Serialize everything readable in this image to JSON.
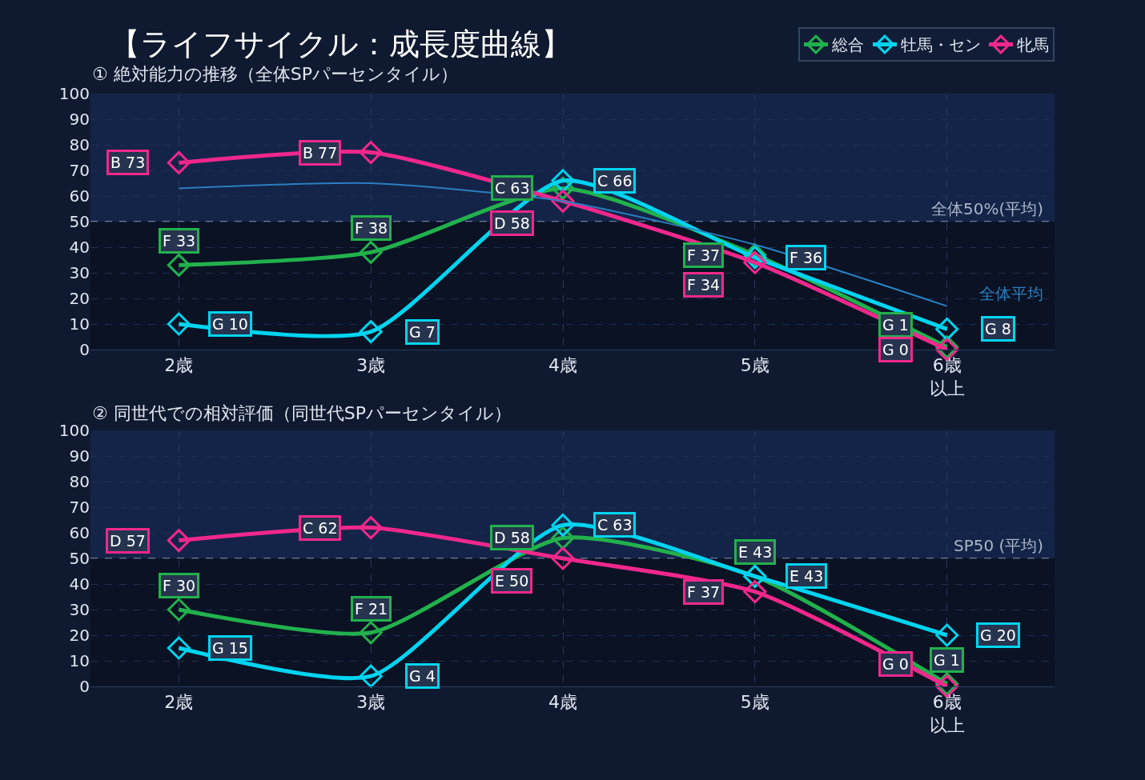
{
  "chart_data": [
    {
      "type": "line",
      "title": "【ライフサイクル：成長度曲線】",
      "subtitle": "① 絶対能力の推移（全体SPパーセンタイル）",
      "categories": [
        "2歳",
        "3歳",
        "4歳",
        "5歳",
        "6歳以上"
      ],
      "series": [
        {
          "name": "総合",
          "color": "#22b14c",
          "values": [
            33,
            38,
            63,
            37,
            1
          ],
          "value_labels": [
            "F 33",
            "F 38",
            "C 63",
            "F 37",
            "G 1"
          ]
        },
        {
          "name": "牡馬・セン",
          "color": "#00d4f0",
          "values": [
            10,
            7,
            66,
            36,
            8
          ],
          "value_labels": [
            "G 10",
            "G 7",
            "C 66",
            "F 36",
            "G 8"
          ]
        },
        {
          "name": "牝馬",
          "color": "#f0288c",
          "values": [
            73,
            77,
            58,
            34,
            0
          ],
          "value_labels": [
            "B 73",
            "B 77",
            "D 58",
            "F 34",
            "G 0"
          ]
        },
        {
          "name": "全体平均",
          "color": "#2a7fc0",
          "values": [
            63,
            65,
            58,
            41,
            17
          ],
          "marker": "none"
        }
      ],
      "ylim": [
        0,
        100
      ],
      "yticks": [
        0,
        10,
        20,
        30,
        40,
        50,
        60,
        70,
        80,
        90,
        100
      ],
      "ref_lines": [
        {
          "axis": "y",
          "value": 50,
          "label": "全体50%(平均)",
          "color": "#6c7a96",
          "line_style": "dashed"
        }
      ],
      "bands": [
        {
          "axis": "y",
          "from": 50,
          "to": 100,
          "color": "#142448"
        }
      ],
      "grid": true,
      "legend": "top right",
      "marker": "diamond"
    },
    {
      "type": "line",
      "title": "② 同世代での相対評価（同世代SPパーセンタイル）",
      "categories": [
        "2歳",
        "3歳",
        "4歳",
        "5歳",
        "6歳以上"
      ],
      "series": [
        {
          "color": "#22b14c",
          "values": [
            30,
            21,
            58,
            43,
            1
          ],
          "value_labels": [
            "F 30",
            "F 21",
            "D 58",
            "E 43",
            "G 1"
          ]
        },
        {
          "color": "#00d4f0",
          "values": [
            15,
            4,
            63,
            43,
            20
          ],
          "value_labels": [
            "G 15",
            "G 4",
            "C 63",
            "E 43",
            "G 20"
          ]
        },
        {
          "color": "#f0288c",
          "values": [
            57,
            62,
            50,
            37,
            0
          ],
          "value_labels": [
            "D 57",
            "C 62",
            "E 50",
            "F 37",
            "G 0"
          ]
        }
      ],
      "ylim": [
        0,
        100
      ],
      "yticks": [
        0,
        10,
        20,
        30,
        40,
        50,
        60,
        70,
        80,
        90,
        100
      ],
      "ref_lines": [
        {
          "axis": "y",
          "value": 50,
          "label": "SP50 (平均)",
          "color": "#6c7a96",
          "line_style": "dashed"
        }
      ],
      "bands": [
        {
          "axis": "y",
          "from": 50,
          "to": 100,
          "color": "#142448"
        }
      ],
      "grid": true,
      "legend": false,
      "marker": "diamond"
    }
  ]
}
